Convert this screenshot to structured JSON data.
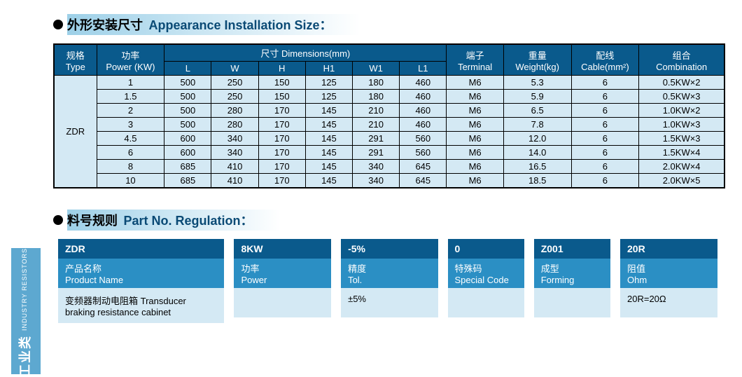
{
  "section1": {
    "title_cn": "外形安装尺寸",
    "title_en": "Appearance Installation Size："
  },
  "section2": {
    "title_cn": "料号规则",
    "title_en": "Part No. Regulation："
  },
  "table": {
    "headers": {
      "type": {
        "cn": "规格",
        "en": "Type"
      },
      "power": {
        "cn": "功率",
        "en": "Power (KW)"
      },
      "dims": {
        "cn": "尺寸",
        "en": "Dimensions(mm)"
      },
      "L": "L",
      "W": "W",
      "H": "H",
      "H1": "H1",
      "W1": "W1",
      "L1": "L1",
      "terminal": {
        "cn": "端子",
        "en": "Terminal"
      },
      "weight": {
        "cn": "重量",
        "en": "Weight(kg)"
      },
      "cable": {
        "cn": "配线",
        "en": "Cable(mm²)"
      },
      "combo": {
        "cn": "组合",
        "en": "Combination"
      }
    },
    "type_label": "ZDR",
    "rows": [
      {
        "power": "1",
        "L": "500",
        "W": "250",
        "H": "150",
        "H1": "125",
        "W1": "180",
        "L1": "460",
        "terminal": "M6",
        "weight": "5.3",
        "cable": "6",
        "combo": "0.5KW×2"
      },
      {
        "power": "1.5",
        "L": "500",
        "W": "250",
        "H": "150",
        "H1": "125",
        "W1": "180",
        "L1": "460",
        "terminal": "M6",
        "weight": "5.9",
        "cable": "6",
        "combo": "0.5KW×3"
      },
      {
        "power": "2",
        "L": "500",
        "W": "280",
        "H": "170",
        "H1": "145",
        "W1": "210",
        "L1": "460",
        "terminal": "M6",
        "weight": "6.5",
        "cable": "6",
        "combo": "1.0KW×2"
      },
      {
        "power": "3",
        "L": "500",
        "W": "280",
        "H": "170",
        "H1": "145",
        "W1": "210",
        "L1": "460",
        "terminal": "M6",
        "weight": "7.8",
        "cable": "6",
        "combo": "1.0KW×3"
      },
      {
        "power": "4.5",
        "L": "600",
        "W": "340",
        "H": "170",
        "H1": "145",
        "W1": "291",
        "L1": "560",
        "terminal": "M6",
        "weight": "12.0",
        "cable": "6",
        "combo": "1.5KW×3"
      },
      {
        "power": "6",
        "L": "600",
        "W": "340",
        "H": "170",
        "H1": "145",
        "W1": "291",
        "L1": "560",
        "terminal": "M6",
        "weight": "14.0",
        "cable": "6",
        "combo": "1.5KW×4"
      },
      {
        "power": "8",
        "L": "685",
        "W": "410",
        "H": "170",
        "H1": "145",
        "W1": "340",
        "L1": "645",
        "terminal": "M6",
        "weight": "16.5",
        "cable": "6",
        "combo": "2.0KW×4"
      },
      {
        "power": "10",
        "L": "685",
        "W": "410",
        "H": "170",
        "H1": "145",
        "W1": "340",
        "L1": "645",
        "terminal": "M6",
        "weight": "18.5",
        "cable": "6",
        "combo": "2.0KW×5"
      }
    ]
  },
  "partnum": {
    "cols": [
      {
        "value": "ZDR",
        "label_cn": "产品名称",
        "label_en": "Product Name",
        "desc": "变频器制动电阻箱  Transducer braking resistance cabinet"
      },
      {
        "value": "8KW",
        "label_cn": "功率",
        "label_en": "Power",
        "desc": ""
      },
      {
        "value": "-5%",
        "label_cn": "精度",
        "label_en": "Tol.",
        "desc": "±5%"
      },
      {
        "value": "0",
        "label_cn": "特殊码",
        "label_en": "Special Code",
        "desc": ""
      },
      {
        "value": "Z001",
        "label_cn": "成型",
        "label_en": "Forming",
        "desc": ""
      },
      {
        "value": "20R",
        "label_cn": "阻值",
        "label_en": "Ohm",
        "desc": "20R=20Ω"
      }
    ]
  },
  "side": {
    "cn": "工业类",
    "en": "INDUSTRY  RESISTORS"
  },
  "colors": {
    "header_bg": "#0a5a8c",
    "body_bg": "#d4e9f4",
    "label_bg": "#2b8fc4",
    "gradient_start": "#9dd0e8"
  }
}
